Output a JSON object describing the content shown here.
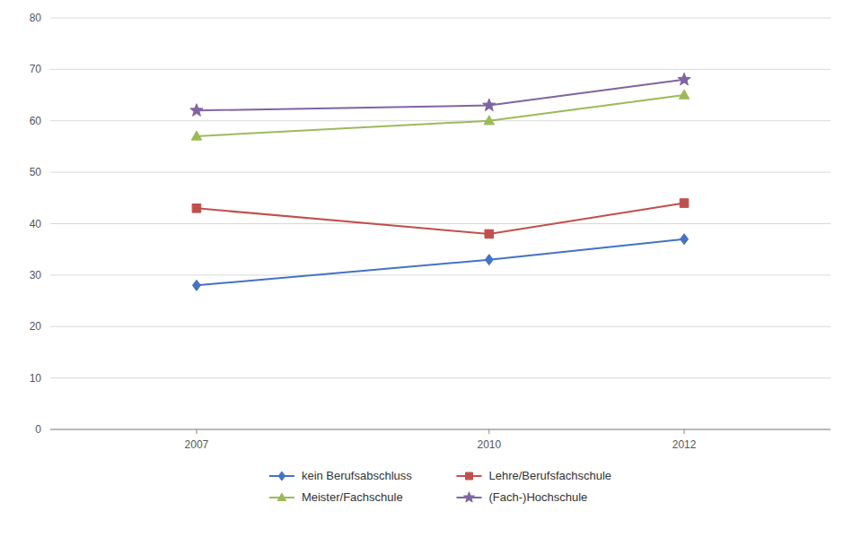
{
  "chart_data": {
    "type": "line",
    "x": [
      2007,
      2010,
      2012
    ],
    "xlim": [
      2005.5,
      2013.5
    ],
    "xticks": [
      2007,
      2010,
      2012
    ],
    "ylim": [
      0,
      80
    ],
    "yticks": [
      0,
      10,
      20,
      30,
      40,
      50,
      60,
      70,
      80
    ],
    "grid": true,
    "legend": "bottom",
    "series": [
      {
        "name": "kein Berufsabschluss",
        "color": "#4472C4",
        "marker": "diamond",
        "values": [
          28,
          33,
          37
        ]
      },
      {
        "name": "Lehre/Berufsfachschule",
        "color": "#C0504D",
        "marker": "square",
        "values": [
          43,
          38,
          44
        ]
      },
      {
        "name": "Meister/Fachschule",
        "color": "#9BBB59",
        "marker": "triangle",
        "values": [
          57,
          60,
          65
        ]
      },
      {
        "name": "(Fach-)Hochschule",
        "color": "#8064A2",
        "marker": "star",
        "values": [
          62,
          63,
          68
        ]
      }
    ]
  }
}
